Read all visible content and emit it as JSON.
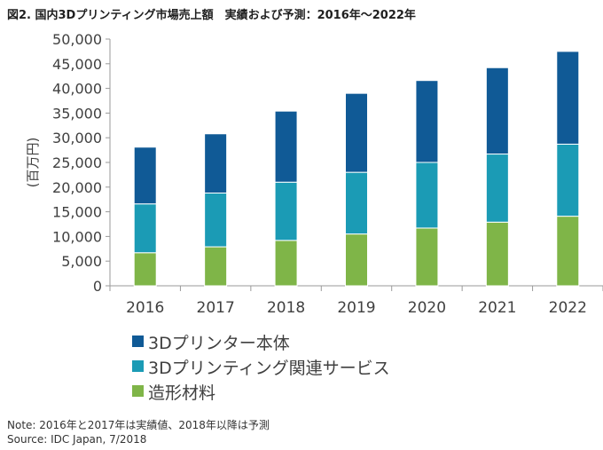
{
  "title": "図2. 国内3Dプリンティング市場売上額　実績および予測：2016年～2022年",
  "notes": {
    "note": "Note: 2016年と2017年は実績値、2018年以降は予測",
    "source": "Source: IDC Japan, 7/2018"
  },
  "chart_data": {
    "type": "bar",
    "stacked": true,
    "title": "国内3Dプリンティング市場売上額　実績および予測：2016年～2022年",
    "xlabel": "",
    "ylabel": "(百万円)",
    "ylim": [
      0,
      50000
    ],
    "yticks": [
      0,
      5000,
      10000,
      15000,
      20000,
      25000,
      30000,
      35000,
      40000,
      45000,
      50000
    ],
    "ytick_labels": [
      "0",
      "5,000",
      "10,000",
      "15,000",
      "20,000",
      "25,000",
      "30,000",
      "35,000",
      "40,000",
      "45,000",
      "50,000"
    ],
    "categories": [
      "2016",
      "2017",
      "2018",
      "2019",
      "2020",
      "2021",
      "2022"
    ],
    "series": [
      {
        "name": "造形材料",
        "color": "#7fb548",
        "values": [
          6700,
          7900,
          9200,
          10500,
          11700,
          12900,
          14100
        ]
      },
      {
        "name": "3Dプリンティング関連サービス",
        "color": "#1b9bb5",
        "values": [
          9900,
          10900,
          11800,
          12500,
          13300,
          13800,
          14600
        ]
      },
      {
        "name": "3Dプリンター本体",
        "color": "#105a96",
        "values": [
          11500,
          12000,
          14400,
          16000,
          16600,
          17500,
          18800
        ]
      }
    ],
    "legend_order": [
      "3Dプリンター本体",
      "3Dプリンティング関連サービス",
      "造形材料"
    ],
    "legend_position": "bottom-left",
    "grid": false
  }
}
